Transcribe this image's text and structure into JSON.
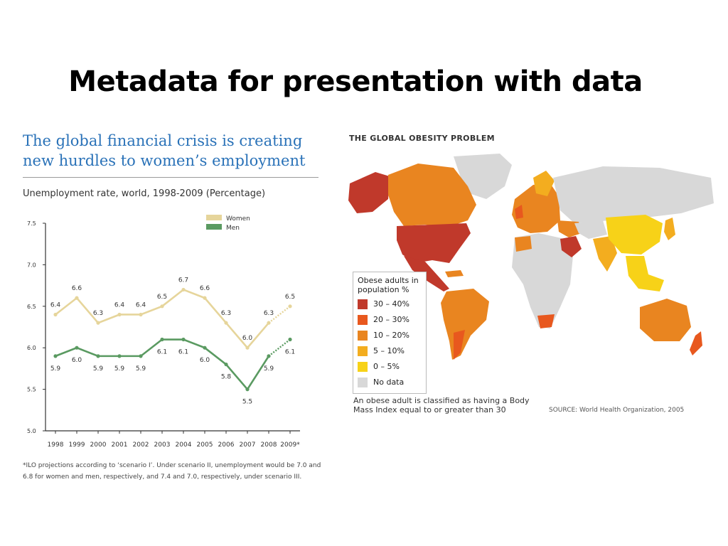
{
  "slide": {
    "title": "Metadata for presentation with data"
  },
  "chart": {
    "heading": "The global financial crisis is creating new hurdles to women’s employment",
    "subtitle": "Unemployment rate, world, 1998-2009 (Percentage)",
    "footnote": "*ILO projections according to ‘scenario I’. Under scenario II, unemployment would be 7.0 and 6.8 for women and men, respectively, and 7.4 and 7.0, respectively, under scenario III."
  },
  "chart_data": {
    "type": "line",
    "categories": [
      "1998",
      "1999",
      "2000",
      "2001",
      "2002",
      "2003",
      "2004",
      "2005",
      "2006",
      "2007",
      "2008",
      "2009*"
    ],
    "series": [
      {
        "name": "Women",
        "color": "#e6d59b",
        "values": [
          6.4,
          6.6,
          6.3,
          6.4,
          6.4,
          6.5,
          6.7,
          6.6,
          6.3,
          6.0,
          6.3,
          6.5
        ],
        "projected_from_index": 10
      },
      {
        "name": "Men",
        "color": "#5a9a61",
        "values": [
          5.9,
          6.0,
          5.9,
          5.9,
          5.9,
          6.1,
          6.1,
          6.0,
          5.8,
          5.5,
          5.9,
          6.1
        ],
        "projected_from_index": 10
      }
    ],
    "data_label_values": {
      "Women": [
        "6.4",
        "6.6",
        "6.3",
        "6.4",
        "6.4",
        "6.5",
        "6.7",
        "6.6",
        "6.3",
        "6.0",
        "6.3",
        "6.5"
      ],
      "Men": [
        "5.9",
        "6.0",
        "5.9",
        "5.9",
        "5.9",
        "6.1",
        "6.1",
        "6.0",
        "5.8",
        "5.5",
        "5.9",
        "6.1"
      ]
    },
    "y_ticks": [
      "7.5",
      "7.0",
      "6.5",
      "6.0",
      "5.5",
      "5.0"
    ],
    "ylim": [
      5.0,
      7.5
    ],
    "xlabel": "",
    "ylabel": "",
    "grid": false,
    "legend_position": "top-right"
  },
  "map": {
    "title": "THE GLOBAL OBESITY PROBLEM",
    "legend_title": "Obese adults in population %",
    "legend": [
      {
        "label": "30 – 40%",
        "color": "#c0392b"
      },
      {
        "label": "20 – 30%",
        "color": "#e8581e"
      },
      {
        "label": "10 – 20%",
        "color": "#e98520"
      },
      {
        "label": "5 – 10%",
        "color": "#f3ad1f"
      },
      {
        "label": "0 – 5%",
        "color": "#f7d218"
      },
      {
        "label": "No data",
        "color": "#d8d8d8"
      }
    ],
    "note": "An obese adult is classified as having a Body Mass Index equal to or greater than 30",
    "source": "SOURCE: World Health Organization, 2005",
    "regions": {
      "usa": "30 – 40%",
      "mexico": "30 – 40%",
      "saudi_arabia": "30 – 40%",
      "canada": "10 – 20%",
      "russia": "No data",
      "china": "0 – 5%",
      "australia": "10 – 20%",
      "brazil": "10 – 20%",
      "africa": "No data"
    }
  }
}
